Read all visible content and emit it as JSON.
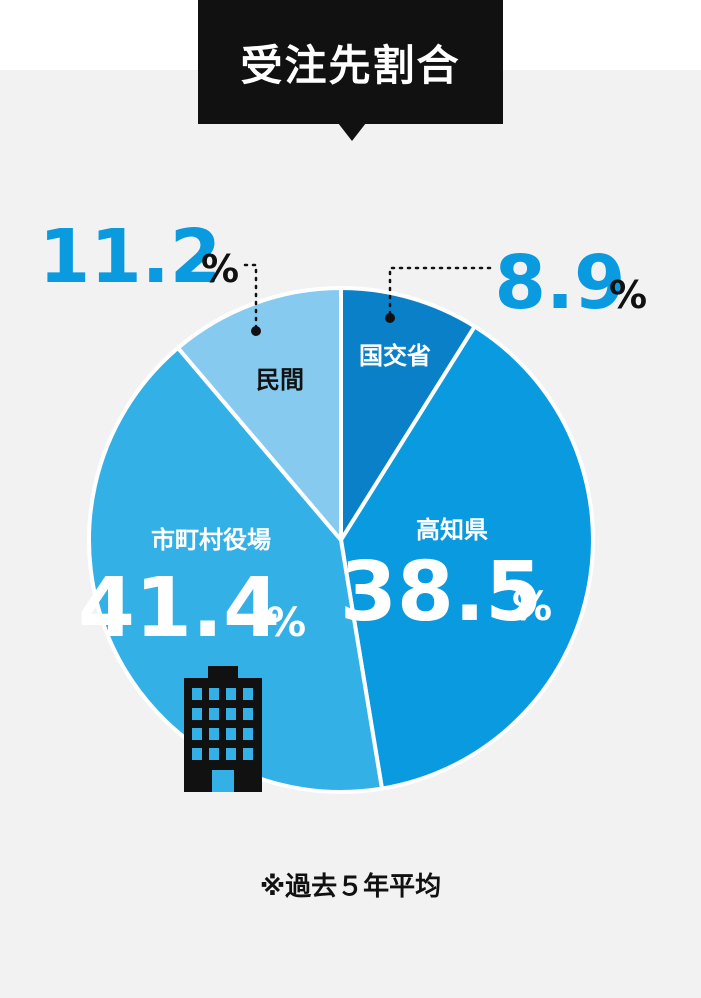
{
  "title": "受注先割合",
  "footnote": "※過去５年平均",
  "chart_data": {
    "type": "pie",
    "slices": [
      {
        "label": "国交省",
        "value": 8.9,
        "value_text": "8.9",
        "unit": "%",
        "color": "#0a80c8"
      },
      {
        "label": "高知県",
        "value": 38.5,
        "value_text": "38.5",
        "unit": "%",
        "color": "#0a9ae0"
      },
      {
        "label": "市町村役場",
        "value": 41.4,
        "value_text": "41.4",
        "unit": "%",
        "color": "#33b1e6"
      },
      {
        "label": "民間",
        "value": 11.2,
        "value_text": "11.2",
        "unit": "%",
        "color": "#86cbef"
      }
    ],
    "start": "12 o'clock",
    "direction": "clockwise",
    "callout_color": "#0a9ae0",
    "icon": "office-building-icon"
  }
}
